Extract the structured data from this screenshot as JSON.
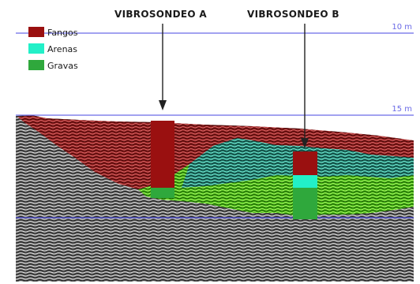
{
  "header": {
    "vibrosondeo_a": "VIBROSONDEO A",
    "vibrosondeo_b": "VIBROSONDEO B"
  },
  "legend": {
    "items": [
      {
        "label": "Fangos",
        "color": "#9a1010"
      },
      {
        "label": "Arenas",
        "color": "#22f0c8"
      },
      {
        "label": "Gravas",
        "color": "#2fa83c"
      }
    ]
  },
  "depth_markers": [
    {
      "label": "10 m"
    },
    {
      "label": "15 m"
    }
  ],
  "colors": {
    "background": "#ffffff",
    "reference_line": "#6a6ae6",
    "section_base": "#5a5a5a",
    "fangos_layer": "#9c2020",
    "arenas_layer": "#2a9a86",
    "gravas_layer": "#58d022",
    "column_fangos": "#9a1010",
    "column_arenas": "#22f0c8",
    "column_gravas": "#2fa83c"
  }
}
